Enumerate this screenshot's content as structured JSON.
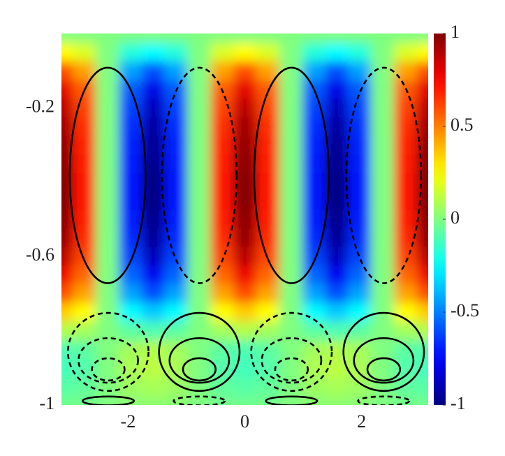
{
  "chart_data": {
    "type": "heatmap",
    "colormap": "jet",
    "xlim": [
      -3.1416,
      3.1416
    ],
    "ylim": [
      -1,
      0
    ],
    "xticks": [
      -2,
      0,
      2
    ],
    "yticks": [
      -1,
      -0.6,
      -0.2
    ],
    "clim": [
      -1,
      1
    ],
    "cticks": [
      -1,
      -0.5,
      0,
      0.5,
      1
    ],
    "x": [
      -3.14,
      -2.75,
      -2.36,
      -1.96,
      -1.57,
      -1.18,
      -0.79,
      -0.39,
      0,
      0.39,
      0.79,
      1.18,
      1.57,
      1.96,
      2.36,
      2.75,
      3.14
    ],
    "y": [
      0,
      -0.05,
      -0.1,
      -0.15,
      -0.2,
      -0.25,
      -0.3,
      -0.35,
      -0.4,
      -0.45,
      -0.5,
      -0.55,
      -0.6,
      -0.65,
      -0.7,
      -0.75,
      -0.8,
      -0.85,
      -0.9,
      -0.95,
      -1
    ],
    "z": [
      [
        0,
        0,
        0,
        0,
        0,
        0,
        0,
        0,
        0,
        0,
        0,
        0,
        0,
        0,
        0,
        0,
        0
      ],
      [
        0.25,
        0.18,
        0,
        -0.18,
        -0.25,
        -0.18,
        0,
        0.18,
        0.25,
        0.18,
        0,
        -0.18,
        -0.25,
        -0.18,
        0,
        0.18,
        0.25
      ],
      [
        0.6,
        0.43,
        0,
        -0.43,
        -0.6,
        -0.43,
        0,
        0.43,
        0.6,
        0.43,
        0,
        -0.43,
        -0.6,
        -0.43,
        0,
        0.43,
        0.6
      ],
      [
        0.8,
        0.57,
        0,
        -0.57,
        -0.8,
        -0.57,
        0,
        0.57,
        0.8,
        0.57,
        0,
        -0.57,
        -0.8,
        -0.57,
        0,
        0.57,
        0.8
      ],
      [
        0.88,
        0.62,
        0,
        -0.62,
        -0.88,
        -0.62,
        0,
        0.62,
        0.88,
        0.62,
        0,
        -0.62,
        -0.88,
        -0.62,
        0,
        0.62,
        0.88
      ],
      [
        0.93,
        0.66,
        0,
        -0.66,
        -0.93,
        -0.66,
        0,
        0.66,
        0.93,
        0.66,
        0,
        -0.66,
        -0.93,
        -0.66,
        0,
        0.66,
        0.93
      ],
      [
        0.96,
        0.68,
        0,
        -0.68,
        -0.96,
        -0.68,
        0,
        0.68,
        0.96,
        0.68,
        0,
        -0.68,
        -0.96,
        -0.68,
        0,
        0.68,
        0.96
      ],
      [
        0.98,
        0.7,
        0,
        -0.7,
        -0.98,
        -0.7,
        0,
        0.7,
        0.98,
        0.7,
        0,
        -0.7,
        -0.98,
        -0.7,
        0,
        0.7,
        0.98
      ],
      [
        1,
        0.71,
        0,
        -0.71,
        -1,
        -0.71,
        0,
        0.71,
        1,
        0.71,
        0,
        -0.71,
        -1,
        -0.71,
        0,
        0.71,
        1
      ],
      [
        1,
        0.71,
        0,
        -0.71,
        -1,
        -0.71,
        0,
        0.71,
        1,
        0.71,
        0,
        -0.71,
        -1,
        -0.71,
        0,
        0.71,
        1
      ],
      [
        0.98,
        0.7,
        0,
        -0.7,
        -0.98,
        -0.7,
        0,
        0.7,
        0.98,
        0.7,
        0,
        -0.7,
        -0.98,
        -0.7,
        0,
        0.7,
        0.98
      ],
      [
        0.95,
        0.67,
        0,
        -0.67,
        -0.95,
        -0.67,
        0,
        0.67,
        0.95,
        0.67,
        0,
        -0.67,
        -0.95,
        -0.67,
        0,
        0.67,
        0.95
      ],
      [
        0.88,
        0.62,
        0,
        -0.62,
        -0.88,
        -0.62,
        0,
        0.62,
        0.88,
        0.62,
        0,
        -0.62,
        -0.88,
        -0.62,
        0,
        0.62,
        0.88
      ],
      [
        0.78,
        0.55,
        0,
        -0.55,
        -0.78,
        -0.55,
        0,
        0.55,
        0.78,
        0.55,
        0,
        -0.55,
        -0.78,
        -0.55,
        0,
        0.55,
        0.78
      ],
      [
        0.6,
        0.43,
        0,
        -0.43,
        -0.6,
        -0.43,
        0,
        0.43,
        0.6,
        0.43,
        0,
        -0.43,
        -0.6,
        -0.43,
        0,
        0.43,
        0.6
      ],
      [
        0.35,
        0.25,
        0,
        -0.25,
        -0.35,
        -0.25,
        0,
        0.25,
        0.35,
        0.25,
        0,
        -0.25,
        -0.35,
        -0.25,
        0,
        0.25,
        0.35
      ],
      [
        0.1,
        0.07,
        0,
        -0.07,
        -0.1,
        -0.07,
        0,
        0.07,
        0.1,
        0.07,
        0,
        -0.07,
        -0.1,
        -0.07,
        0,
        0.07,
        0.1
      ],
      [
        -0.1,
        -0.07,
        0,
        0.07,
        0.1,
        0.07,
        0,
        -0.07,
        -0.1,
        -0.07,
        0,
        0.07,
        0.1,
        0.07,
        0,
        -0.07,
        -0.1
      ],
      [
        -0.12,
        -0.09,
        0,
        0.09,
        0.12,
        0.09,
        0,
        -0.09,
        -0.12,
        -0.09,
        0,
        0.09,
        0.12,
        0.09,
        0,
        -0.09,
        -0.12
      ],
      [
        -0.08,
        -0.06,
        0,
        0.06,
        0.08,
        0.06,
        0,
        -0.06,
        -0.08,
        -0.06,
        0,
        0.06,
        0.08,
        0.06,
        0,
        -0.06,
        -0.08
      ],
      [
        -0.03,
        -0.02,
        0,
        0.02,
        0.03,
        0.02,
        0,
        -0.02,
        -0.03,
        -0.02,
        0,
        0.02,
        0.03,
        0.02,
        0,
        -0.02,
        -0.03
      ]
    ],
    "contours": [
      {
        "style": "solid",
        "cx": -2.35,
        "cy": -0.382,
        "rx": 0.65,
        "ry": 0.29
      },
      {
        "style": "dashed",
        "cx": -0.78,
        "cy": -0.382,
        "rx": 0.64,
        "ry": 0.29
      },
      {
        "style": "solid",
        "cx": 0.8,
        "cy": -0.382,
        "rx": 0.64,
        "ry": 0.29
      },
      {
        "style": "dashed",
        "cx": 2.38,
        "cy": -0.382,
        "rx": 0.64,
        "ry": 0.29
      },
      {
        "style": "dashed",
        "cx": -2.34,
        "cy": -0.857,
        "rx": 0.69,
        "ry": 0.105
      },
      {
        "style": "dashed",
        "cx": -2.34,
        "cy": -0.88,
        "rx": 0.51,
        "ry": 0.06
      },
      {
        "style": "dashed",
        "cx": -2.34,
        "cy": -0.904,
        "rx": 0.28,
        "ry": 0.03
      },
      {
        "style": "solid",
        "cx": -0.78,
        "cy": -0.857,
        "rx": 0.69,
        "ry": 0.105
      },
      {
        "style": "solid",
        "cx": -0.78,
        "cy": -0.88,
        "rx": 0.51,
        "ry": 0.06
      },
      {
        "style": "solid",
        "cx": -0.78,
        "cy": -0.904,
        "rx": 0.28,
        "ry": 0.03
      },
      {
        "style": "dashed",
        "cx": 0.8,
        "cy": -0.857,
        "rx": 0.69,
        "ry": 0.105
      },
      {
        "style": "dashed",
        "cx": 0.8,
        "cy": -0.88,
        "rx": 0.51,
        "ry": 0.06
      },
      {
        "style": "dashed",
        "cx": 0.8,
        "cy": -0.904,
        "rx": 0.28,
        "ry": 0.03
      },
      {
        "style": "solid",
        "cx": 2.38,
        "cy": -0.857,
        "rx": 0.69,
        "ry": 0.105
      },
      {
        "style": "solid",
        "cx": 2.38,
        "cy": -0.88,
        "rx": 0.51,
        "ry": 0.06
      },
      {
        "style": "solid",
        "cx": 2.38,
        "cy": -0.904,
        "rx": 0.28,
        "ry": 0.03
      },
      {
        "style": "solid",
        "cx": -2.34,
        "cy": -0.989,
        "rx": 0.44,
        "ry": 0.012
      },
      {
        "style": "dashed",
        "cx": -0.78,
        "cy": -0.989,
        "rx": 0.44,
        "ry": 0.012
      },
      {
        "style": "solid",
        "cx": 0.8,
        "cy": -0.989,
        "rx": 0.44,
        "ry": 0.012
      },
      {
        "style": "dashed",
        "cx": 2.38,
        "cy": -0.989,
        "rx": 0.44,
        "ry": 0.012
      }
    ]
  }
}
